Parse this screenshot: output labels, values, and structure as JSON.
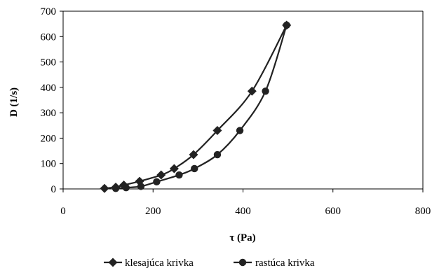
{
  "chart_data": {
    "type": "line",
    "xlabel": "τ (Pa)",
    "ylabel": "D (1/s)",
    "xlim": [
      0,
      800
    ],
    "ylim": [
      0,
      700
    ],
    "xticks": [
      0,
      200,
      400,
      600,
      800
    ],
    "yticks": [
      0,
      100,
      200,
      300,
      400,
      500,
      600,
      700
    ],
    "grid": false,
    "legend_position": "bottom",
    "series": [
      {
        "name": "klesajúca krivka",
        "marker": "diamond",
        "color": "#222222",
        "x": [
          92,
          117,
          135,
          170,
          218,
          247,
          290,
          343,
          420,
          497
        ],
        "y": [
          2,
          7,
          15,
          30,
          55,
          80,
          135,
          230,
          385,
          645
        ]
      },
      {
        "name": "rastúca krivka",
        "marker": "circle",
        "color": "#222222",
        "x": [
          117,
          140,
          173,
          208,
          258,
          292,
          343,
          393,
          450,
          497
        ],
        "y": [
          2,
          5,
          10,
          28,
          55,
          80,
          135,
          230,
          385,
          645
        ]
      }
    ]
  }
}
